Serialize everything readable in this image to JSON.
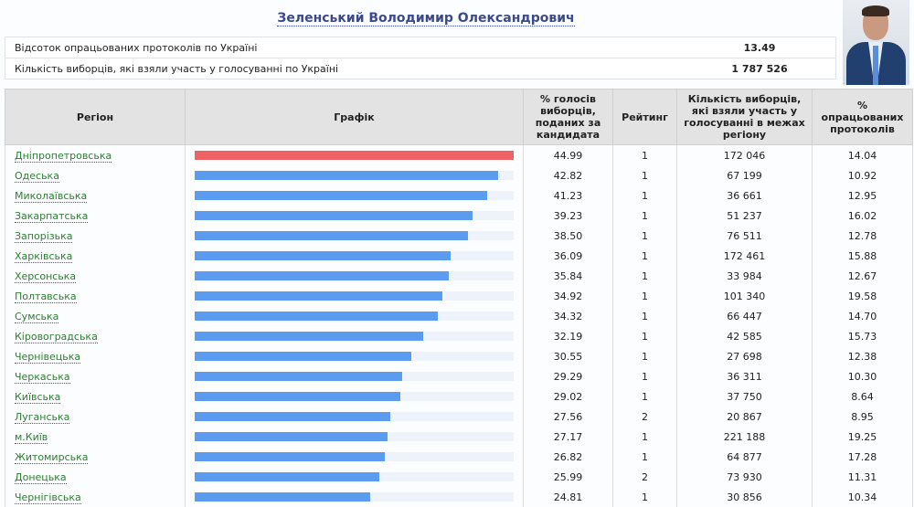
{
  "candidate": {
    "name": "Зеленський Володимир Олександрович"
  },
  "summary": [
    {
      "label": "Відсоток опрацьованих протоколів по Україні",
      "value": "13.49"
    },
    {
      "label": "Кількість виборців, які взяли участь у голосуванні по Україні",
      "value": "1 787 526"
    }
  ],
  "table": {
    "headers": {
      "region": "Регіон",
      "chart": "Графік",
      "percent": "% голосів виборців, поданих за кандидата",
      "rank": "Рейтинг",
      "voters": "Кількість виборців, які взяли участь у голосуванні в межах регіону",
      "processed": "% опрацьованих протоколів"
    },
    "rows": [
      {
        "region": "Дніпропетровська",
        "percent": "44.99",
        "rank": "1",
        "voters": "172 046",
        "processed": "14.04"
      },
      {
        "region": "Одеська",
        "percent": "42.82",
        "rank": "1",
        "voters": "67 199",
        "processed": "10.92"
      },
      {
        "region": "Миколаївська",
        "percent": "41.23",
        "rank": "1",
        "voters": "36 661",
        "processed": "12.95"
      },
      {
        "region": "Закарпатська",
        "percent": "39.23",
        "rank": "1",
        "voters": "51 237",
        "processed": "16.02"
      },
      {
        "region": "Запорізька",
        "percent": "38.50",
        "rank": "1",
        "voters": "76 511",
        "processed": "12.78"
      },
      {
        "region": "Харківська",
        "percent": "36.09",
        "rank": "1",
        "voters": "172 461",
        "processed": "15.88"
      },
      {
        "region": "Херсонська",
        "percent": "35.84",
        "rank": "1",
        "voters": "33 984",
        "processed": "12.67"
      },
      {
        "region": "Полтавська",
        "percent": "34.92",
        "rank": "1",
        "voters": "101 340",
        "processed": "19.58"
      },
      {
        "region": "Сумська",
        "percent": "34.32",
        "rank": "1",
        "voters": "66 447",
        "processed": "14.70"
      },
      {
        "region": "Кіровоградська",
        "percent": "32.19",
        "rank": "1",
        "voters": "42 585",
        "processed": "15.73"
      },
      {
        "region": "Чернівецька",
        "percent": "30.55",
        "rank": "1",
        "voters": "27 698",
        "processed": "12.38"
      },
      {
        "region": "Черкаська",
        "percent": "29.29",
        "rank": "1",
        "voters": "36 311",
        "processed": "10.30"
      },
      {
        "region": "Київська",
        "percent": "29.02",
        "rank": "1",
        "voters": "37 750",
        "processed": "8.64"
      },
      {
        "region": "Луганська",
        "percent": "27.56",
        "rank": "2",
        "voters": "20 867",
        "processed": "8.95"
      },
      {
        "region": "м.Київ",
        "percent": "27.17",
        "rank": "1",
        "voters": "221 188",
        "processed": "19.25"
      },
      {
        "region": "Житомирська",
        "percent": "26.82",
        "rank": "1",
        "voters": "64 877",
        "processed": "17.28"
      },
      {
        "region": "Донецька",
        "percent": "25.99",
        "rank": "2",
        "voters": "73 930",
        "processed": "11.31"
      },
      {
        "region": "Чернігівська",
        "percent": "24.81",
        "rank": "1",
        "voters": "30 856",
        "processed": "10.34"
      }
    ]
  },
  "colors": {
    "bar": "#5b9bf0",
    "bar_top": "#f06166",
    "link": "#2e7d32"
  }
}
